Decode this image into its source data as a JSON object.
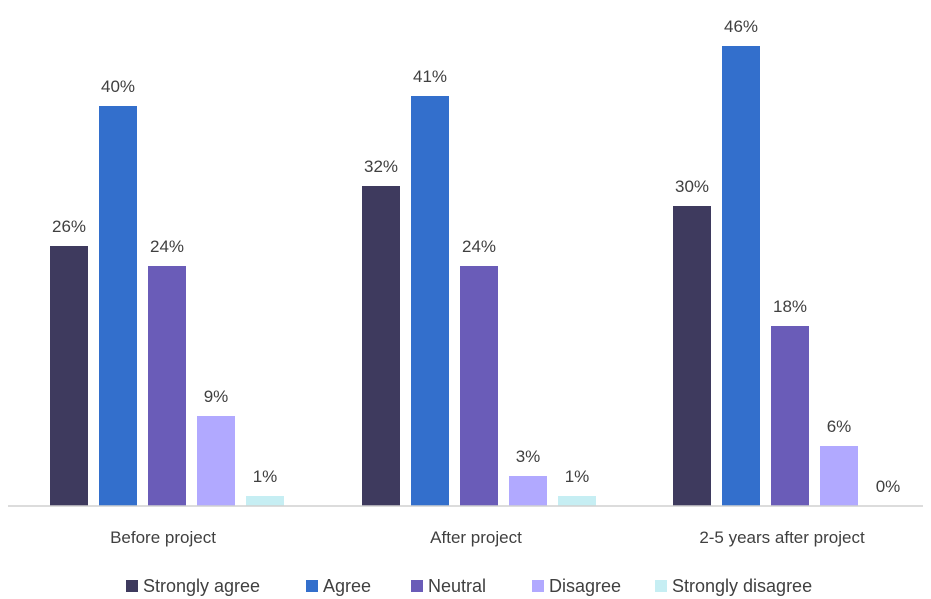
{
  "chart_data": {
    "type": "bar",
    "categories": [
      "Before project",
      "After project",
      "2-5 years after project"
    ],
    "series": [
      {
        "name": "Strongly agree",
        "values": [
          26,
          32,
          30
        ],
        "labels": [
          "26%",
          "32%",
          "30%"
        ],
        "color": "#3e3a5e"
      },
      {
        "name": "Agree",
        "values": [
          40,
          41,
          46
        ],
        "labels": [
          "40%",
          "41%",
          "46%"
        ],
        "color": "#336fcc"
      },
      {
        "name": "Neutral",
        "values": [
          24,
          24,
          18
        ],
        "labels": [
          "24%",
          "24%",
          "18%"
        ],
        "color": "#6a5cb8"
      },
      {
        "name": "Disagree",
        "values": [
          9,
          3,
          6
        ],
        "labels": [
          "9%",
          "3%",
          "6%"
        ],
        "color": "#b1a9ff"
      },
      {
        "name": "Strongly disagree",
        "values": [
          1,
          1,
          0
        ],
        "labels": [
          "1%",
          "1%",
          "0%"
        ],
        "color": "#c6eef3"
      }
    ],
    "ylim": [
      0,
      46
    ],
    "grid": false,
    "legend_position": "bottom"
  }
}
